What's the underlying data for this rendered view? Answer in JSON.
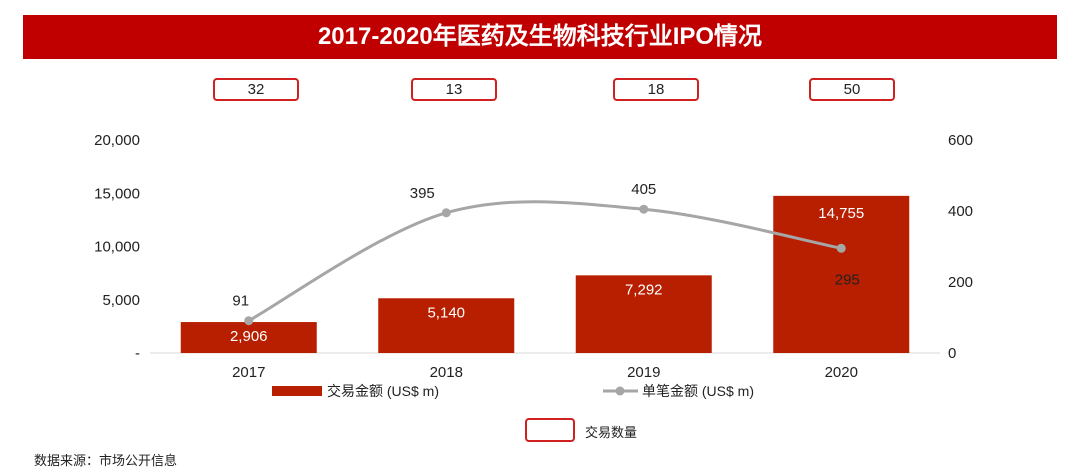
{
  "chart_data": {
    "type": "bar",
    "title": "2017-2020年医药及生物科技行业IPO情况",
    "categories": [
      "2017",
      "2018",
      "2019",
      "2020"
    ],
    "series": [
      {
        "name": "交易金额 (US$ m)",
        "type": "bar",
        "axis": "left",
        "color": "#b81e00",
        "values": [
          2906,
          5140,
          7292,
          14755
        ],
        "labels": [
          "2,906",
          "5,140",
          "7,292",
          "14,755"
        ]
      },
      {
        "name": "单笔金额 (US$ m)",
        "type": "line",
        "axis": "right",
        "color": "#a6a6a6",
        "values": [
          91,
          395,
          405,
          295
        ],
        "labels": [
          "91",
          "395",
          "405",
          "295"
        ]
      }
    ],
    "counts": {
      "name": "交易数量",
      "values": [
        "32",
        "13",
        "18",
        "50"
      ]
    },
    "left_axis": {
      "ylim": [
        0,
        20000
      ],
      "ticks": [
        0,
        5000,
        10000,
        15000,
        20000
      ],
      "tick_labels": [
        "-",
        "5,000",
        "10,000",
        "15,000",
        "20,000"
      ]
    },
    "right_axis": {
      "ylim": [
        0,
        600
      ],
      "ticks": [
        0,
        200,
        400,
        600
      ],
      "tick_labels": [
        "0",
        "200",
        "400",
        "600"
      ]
    },
    "legend": "bottom",
    "source": "数据来源：市场公开信息"
  }
}
